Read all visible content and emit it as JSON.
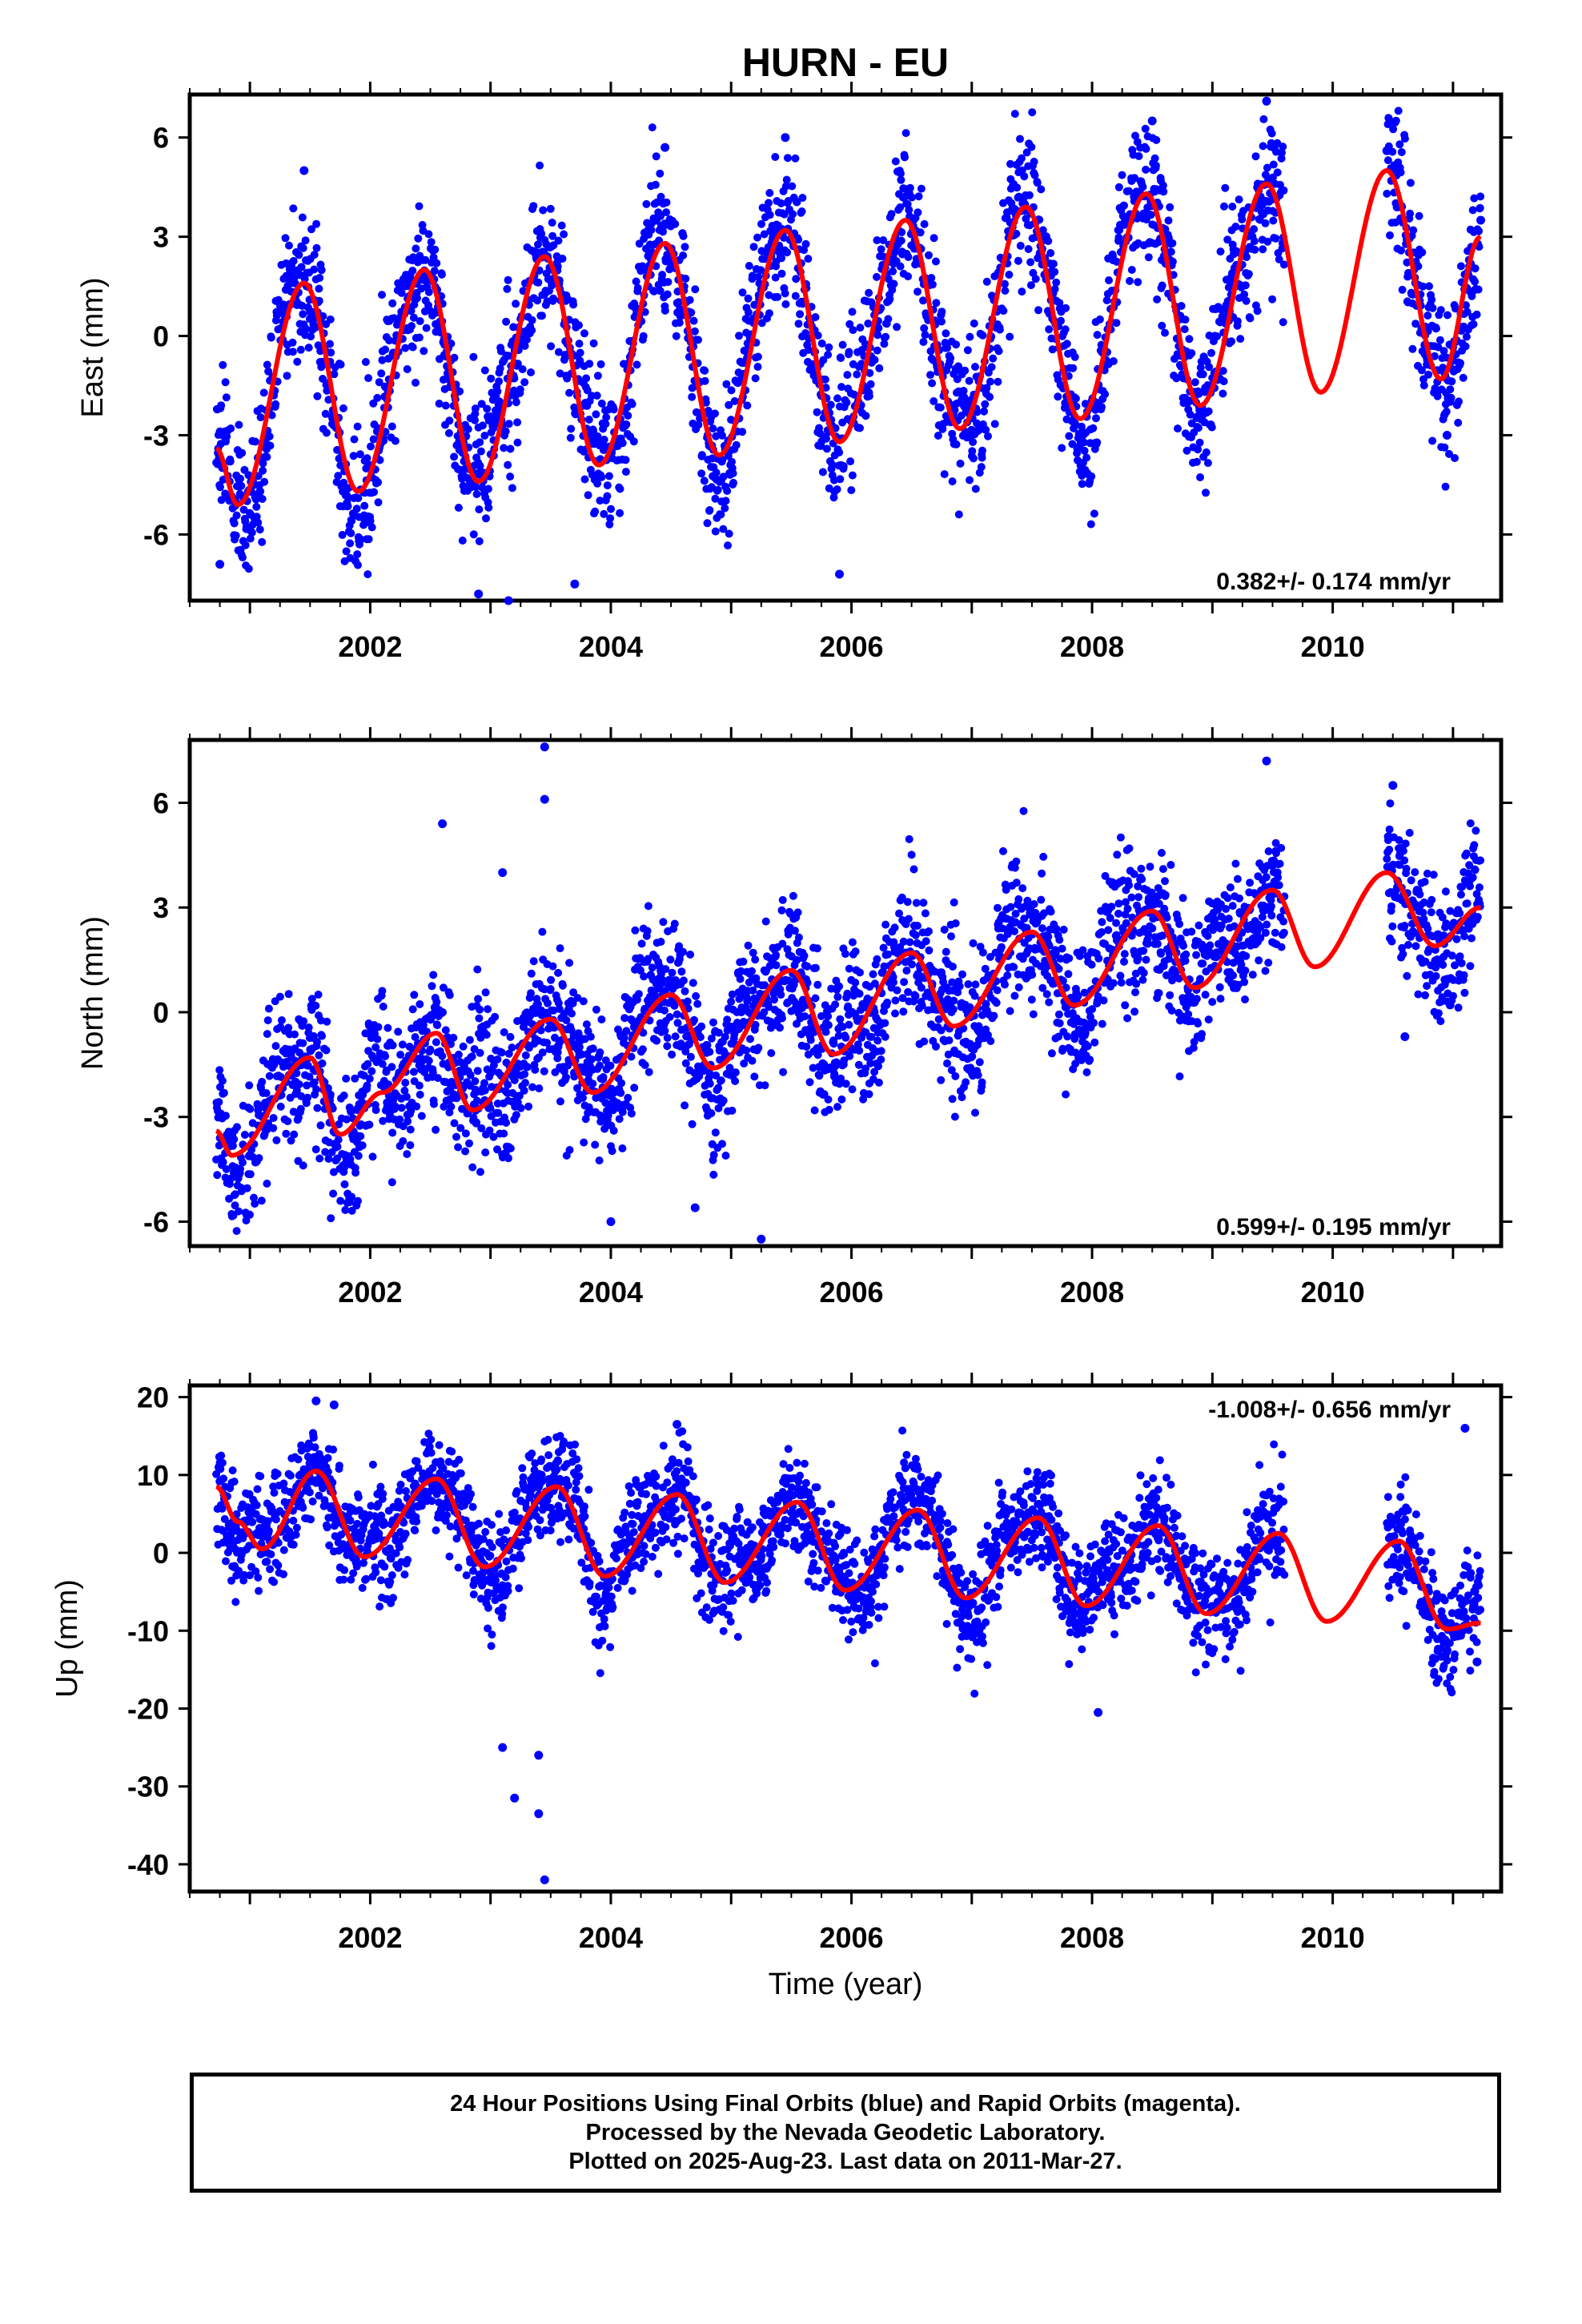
{
  "title": "HURN - EU",
  "xlabel": "Time (year)",
  "footer": {
    "line1": "24 Hour Positions Using Final Orbits (blue) and Rapid Orbits (magenta).",
    "line2": "Processed by the Nevada Geodetic Laboratory.",
    "line3": "Plotted on 2025-Aug-23. Last data on 2011-Mar-27."
  },
  "colors": {
    "points": "#0000ff",
    "model": "#ff0000",
    "axis": "#000000"
  },
  "chart_data": [
    {
      "type": "scatter",
      "ylabel": "East (mm)",
      "rate_label": "0.382+/- 0.174 mm/yr",
      "rate_position": "bottom-right",
      "xlim": [
        2000.5,
        2011.4
      ],
      "ylim": [
        -8.0,
        7.3
      ],
      "yticks": [
        -6,
        -3,
        0,
        3,
        6
      ],
      "xticks": [
        2002,
        2004,
        2006,
        2008,
        2010
      ],
      "data_start": 2000.72,
      "data_end": 2011.23,
      "gaps": [
        [
          2009.6,
          2010.45
        ]
      ],
      "model": {
        "offset": -1.8,
        "trend": 0.382,
        "t0": 2006.0,
        "annual_amp": 3.4,
        "annual_peak": 2006.45,
        "semi_amp": 0.0,
        "semi_phase": 0.0
      },
      "model_keypoints": [
        [
          2000.72,
          -3.4
        ],
        [
          2000.9,
          -5.1
        ],
        [
          2001.45,
          1.6
        ],
        [
          2001.9,
          -4.7
        ],
        [
          2002.45,
          2.0
        ],
        [
          2002.9,
          -4.4
        ],
        [
          2003.45,
          2.4
        ],
        [
          2003.9,
          -3.9
        ],
        [
          2004.45,
          2.8
        ],
        [
          2004.9,
          -3.6
        ],
        [
          2005.45,
          3.2
        ],
        [
          2005.9,
          -3.2
        ],
        [
          2006.45,
          3.5
        ],
        [
          2006.9,
          -2.8
        ],
        [
          2007.45,
          3.9
        ],
        [
          2007.9,
          -2.5
        ],
        [
          2008.45,
          4.3
        ],
        [
          2008.9,
          -2.1
        ],
        [
          2009.45,
          4.6
        ],
        [
          2009.9,
          -1.7
        ],
        [
          2010.45,
          5.0
        ],
        [
          2010.9,
          -1.3
        ],
        [
          2011.23,
          3.0
        ]
      ],
      "scatter_sigma": 1.1,
      "series": [
        {
          "name": "",
          "values": [
            [
              2000.75,
              -6.9
            ],
            [
              2001.45,
              5.0
            ],
            [
              2002.9,
              -7.8
            ],
            [
              2003.15,
              -8.0
            ],
            [
              2003.7,
              -7.5
            ],
            [
              2004.45,
              5.7
            ],
            [
              2005.45,
              6.0
            ],
            [
              2005.9,
              -7.2
            ],
            [
              2008.5,
              6.5
            ],
            [
              2009.45,
              7.1
            ],
            [
              2010.45,
              5.6
            ],
            [
              2010.95,
              -3.0
            ],
            [
              2011.23,
              3.5
            ]
          ]
        }
      ]
    },
    {
      "type": "scatter",
      "ylabel": "North (mm)",
      "rate_label": "0.599+/- 0.195 mm/yr",
      "rate_position": "bottom-right",
      "xlim": [
        2000.5,
        2011.4
      ],
      "ylim": [
        -6.7,
        7.8
      ],
      "yticks": [
        -6,
        -3,
        0,
        3,
        6
      ],
      "xticks": [
        2002,
        2004,
        2006,
        2008,
        2010
      ],
      "data_start": 2000.72,
      "data_end": 2011.23,
      "gaps": [
        [
          2009.6,
          2010.45
        ]
      ],
      "model": {
        "offset": 0.0,
        "trend": 0.599,
        "t0": 2006.0,
        "annual_amp": 0.9,
        "annual_peak": 2006.55,
        "semi_amp": 0.3,
        "semi_phase": 0.3
      },
      "model_keypoints": [
        [
          2000.72,
          -3.4
        ],
        [
          2000.85,
          -4.1
        ],
        [
          2001.5,
          -1.3
        ],
        [
          2001.75,
          -3.5
        ],
        [
          2002.1,
          -2.3
        ],
        [
          2002.55,
          -0.6
        ],
        [
          2002.85,
          -2.8
        ],
        [
          2003.5,
          -0.2
        ],
        [
          2003.85,
          -2.3
        ],
        [
          2004.5,
          0.5
        ],
        [
          2004.85,
          -1.6
        ],
        [
          2005.5,
          1.2
        ],
        [
          2005.85,
          -1.2
        ],
        [
          2006.5,
          1.7
        ],
        [
          2006.85,
          -0.4
        ],
        [
          2007.5,
          2.3
        ],
        [
          2007.85,
          0.2
        ],
        [
          2008.5,
          2.9
        ],
        [
          2008.85,
          0.7
        ],
        [
          2009.5,
          3.5
        ],
        [
          2009.85,
          1.3
        ],
        [
          2010.45,
          4.0
        ],
        [
          2010.85,
          1.9
        ],
        [
          2011.23,
          3.0
        ]
      ],
      "scatter_sigma": 1.0,
      "series": [
        {
          "name": "",
          "values": [
            [
              2002.6,
              5.4
            ],
            [
              2003.1,
              4.0
            ],
            [
              2003.45,
              7.6
            ],
            [
              2003.45,
              6.1
            ],
            [
              2004.0,
              -6.0
            ],
            [
              2004.7,
              -5.6
            ],
            [
              2005.25,
              -6.5
            ],
            [
              2009.45,
              7.2
            ],
            [
              2010.5,
              6.5
            ],
            [
              2010.6,
              -0.7
            ]
          ]
        }
      ]
    },
    {
      "type": "scatter",
      "ylabel": "Up (mm)",
      "rate_label": "-1.008+/- 0.656 mm/yr",
      "rate_position": "top-right",
      "xlim": [
        2000.5,
        2011.4
      ],
      "ylim": [
        -43.5,
        21.5
      ],
      "yticks": [
        -40,
        -30,
        -20,
        -10,
        0,
        10,
        20
      ],
      "xticks": [
        2002,
        2004,
        2006,
        2008,
        2010
      ],
      "data_start": 2000.72,
      "data_end": 2011.23,
      "gaps": [
        [
          2009.6,
          2010.45
        ]
      ],
      "model": {
        "offset": 1.0,
        "trend": -1.008,
        "t0": 2006.0,
        "annual_amp": 5.5,
        "annual_peak": 2006.6,
        "semi_amp": 1.0,
        "semi_phase": 0.25
      },
      "model_keypoints": [
        [
          2000.72,
          8.5
        ],
        [
          2000.9,
          4.0
        ],
        [
          2001.1,
          0.5
        ],
        [
          2001.55,
          10.5
        ],
        [
          2001.95,
          -0.5
        ],
        [
          2002.55,
          9.5
        ],
        [
          2002.95,
          -1.8
        ],
        [
          2003.55,
          8.5
        ],
        [
          2003.95,
          -3.0
        ],
        [
          2004.55,
          7.5
        ],
        [
          2004.95,
          -3.8
        ],
        [
          2005.55,
          6.5
        ],
        [
          2005.95,
          -4.8
        ],
        [
          2006.55,
          5.5
        ],
        [
          2006.95,
          -5.8
        ],
        [
          2007.55,
          4.5
        ],
        [
          2007.95,
          -6.8
        ],
        [
          2008.55,
          3.5
        ],
        [
          2008.95,
          -7.8
        ],
        [
          2009.55,
          2.5
        ],
        [
          2009.95,
          -8.8
        ],
        [
          2010.55,
          1.5
        ],
        [
          2010.95,
          -9.8
        ],
        [
          2011.23,
          -9.0
        ]
      ],
      "scatter_sigma": 3.3,
      "series": [
        {
          "name": "",
          "values": [
            [
              2001.55,
              19.5
            ],
            [
              2001.7,
              19.0
            ],
            [
              2003.1,
              -25.0
            ],
            [
              2003.2,
              -31.5
            ],
            [
              2003.4,
              -33.5
            ],
            [
              2003.45,
              -42.0
            ],
            [
              2003.4,
              -26.0
            ],
            [
              2004.55,
              16.5
            ],
            [
              2008.05,
              -20.5
            ],
            [
              2011.1,
              16.0
            ],
            [
              2011.2,
              -14.0
            ]
          ]
        }
      ]
    }
  ]
}
